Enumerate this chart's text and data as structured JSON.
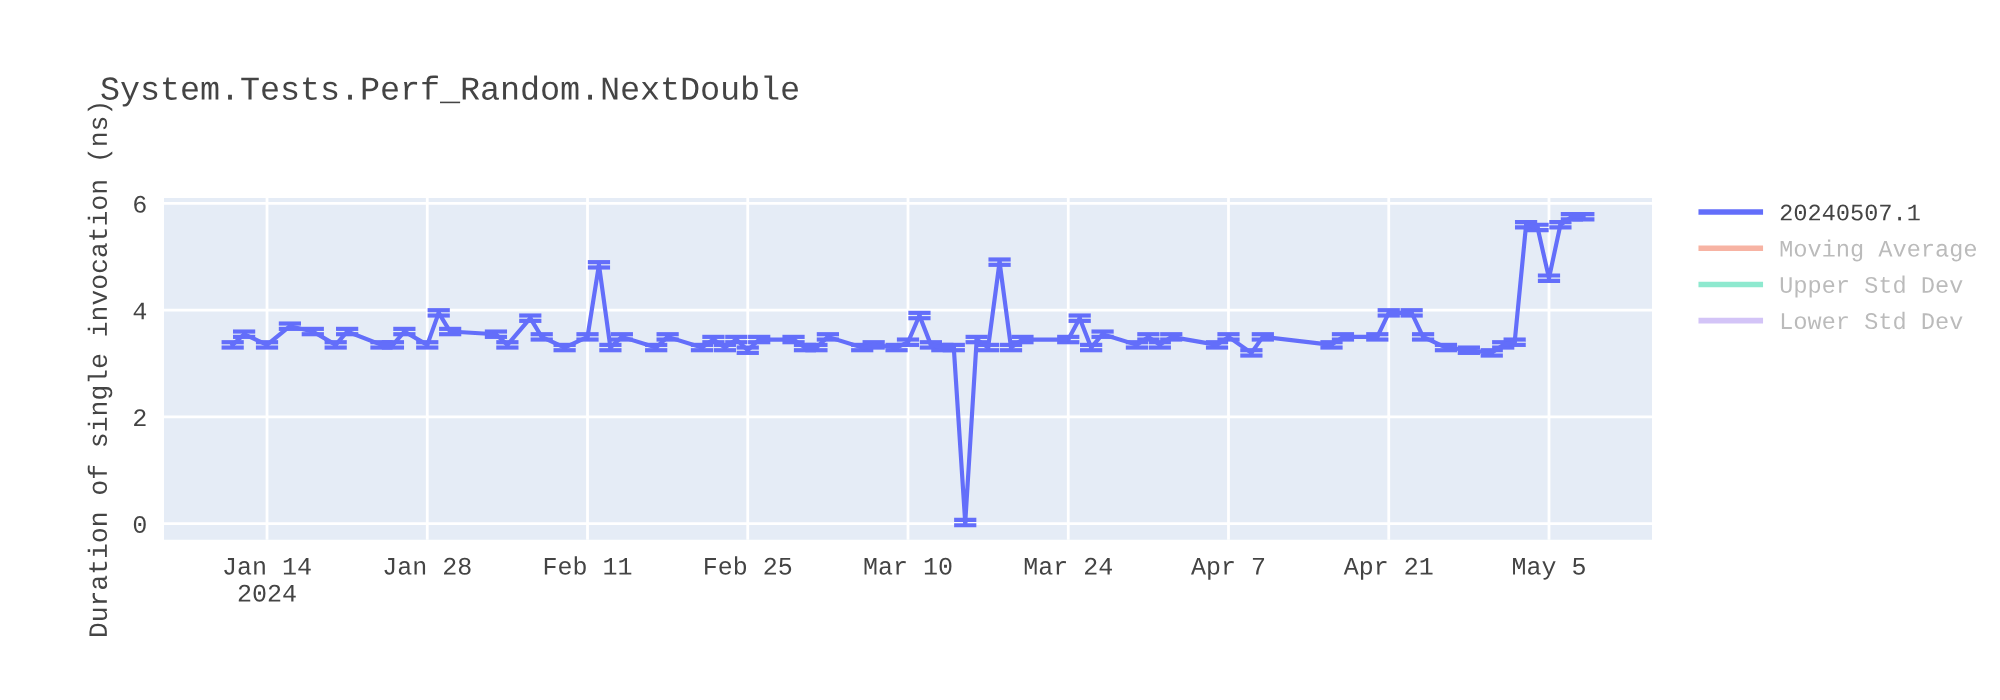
{
  "chart_data": {
    "type": "line",
    "title": "System.Tests.Perf_Random.NextDouble",
    "ylabel": "Duration of single invocation (ns)",
    "x": [
      "2024-01-11",
      "2024-01-12",
      "2024-01-14",
      "2024-01-16",
      "2024-01-18",
      "2024-01-20",
      "2024-01-21",
      "2024-01-24",
      "2024-01-25",
      "2024-01-26",
      "2024-01-28",
      "2024-01-29",
      "2024-01-30",
      "2024-02-03",
      "2024-02-04",
      "2024-02-06",
      "2024-02-07",
      "2024-02-09",
      "2024-02-11",
      "2024-02-12",
      "2024-02-13",
      "2024-02-14",
      "2024-02-17",
      "2024-02-18",
      "2024-02-21",
      "2024-02-22",
      "2024-02-23",
      "2024-02-24",
      "2024-02-25",
      "2024-02-26",
      "2024-02-29",
      "2024-03-01",
      "2024-03-02",
      "2024-03-03",
      "2024-03-06",
      "2024-03-07",
      "2024-03-09",
      "2024-03-10",
      "2024-03-11",
      "2024-03-12",
      "2024-03-13",
      "2024-03-14",
      "2024-03-15",
      "2024-03-16",
      "2024-03-17",
      "2024-03-18",
      "2024-03-19",
      "2024-03-20",
      "2024-03-24",
      "2024-03-25",
      "2024-03-26",
      "2024-03-27",
      "2024-03-30",
      "2024-03-31",
      "2024-04-01",
      "2024-04-02",
      "2024-04-06",
      "2024-04-07",
      "2024-04-09",
      "2024-04-10",
      "2024-04-16",
      "2024-04-17",
      "2024-04-20",
      "2024-04-21",
      "2024-04-23",
      "2024-04-24",
      "2024-04-26",
      "2024-04-28",
      "2024-04-30",
      "2024-05-01",
      "2024-05-02",
      "2024-05-03",
      "2024-05-04",
      "2024-05-05",
      "2024-05-06",
      "2024-05-07",
      "2024-05-08"
    ],
    "series": [
      {
        "name": "20240507.1",
        "color": "#636efa",
        "values": [
          3.35,
          3.55,
          3.35,
          3.7,
          3.6,
          3.35,
          3.6,
          3.35,
          3.35,
          3.6,
          3.35,
          3.95,
          3.6,
          3.55,
          3.35,
          3.85,
          3.5,
          3.3,
          3.5,
          4.85,
          3.3,
          3.5,
          3.3,
          3.5,
          3.3,
          3.45,
          3.3,
          3.45,
          3.25,
          3.45,
          3.45,
          3.3,
          3.3,
          3.5,
          3.3,
          3.35,
          3.3,
          3.4,
          3.9,
          3.35,
          3.3,
          3.3,
          0.02,
          3.45,
          3.3,
          4.9,
          3.3,
          3.45,
          3.45,
          3.85,
          3.3,
          3.55,
          3.35,
          3.5,
          3.35,
          3.5,
          3.35,
          3.5,
          3.2,
          3.5,
          3.35,
          3.5,
          3.5,
          3.95,
          3.95,
          3.5,
          3.3,
          3.25,
          3.2,
          3.35,
          3.4,
          5.6,
          5.55,
          4.6,
          5.6,
          5.75,
          5.75
        ],
        "errors": [
          0.05,
          0.05,
          0.05,
          0.05,
          0.05,
          0.05,
          0.05,
          0.05,
          0.05,
          0.05,
          0.05,
          0.05,
          0.05,
          0.05,
          0.05,
          0.05,
          0.05,
          0.05,
          0.05,
          0.05,
          0.05,
          0.05,
          0.05,
          0.05,
          0.05,
          0.05,
          0.05,
          0.05,
          0.05,
          0.05,
          0.05,
          0.05,
          0.05,
          0.05,
          0.05,
          0.05,
          0.05,
          0.05,
          0.05,
          0.05,
          0.05,
          0.05,
          0.05,
          0.05,
          0.05,
          0.05,
          0.05,
          0.05,
          0.05,
          0.05,
          0.05,
          0.05,
          0.05,
          0.05,
          0.05,
          0.05,
          0.05,
          0.05,
          0.05,
          0.05,
          0.05,
          0.05,
          0.05,
          0.05,
          0.05,
          0.05,
          0.05,
          0.05,
          0.05,
          0.05,
          0.05,
          0.05,
          0.05,
          0.05,
          0.05,
          0.05,
          0.05
        ]
      },
      {
        "name": "Moving Average",
        "color": "#f7b3a3",
        "values": [
          null,
          null,
          null,
          null,
          null,
          null,
          null,
          null,
          null,
          null,
          null,
          null,
          null,
          null,
          null,
          null,
          null,
          null,
          null,
          null,
          null,
          null,
          null,
          null,
          null,
          null,
          null,
          null,
          null,
          null,
          null,
          null,
          null,
          null,
          null,
          null,
          null,
          null,
          null,
          null,
          null,
          null,
          null,
          null,
          null,
          null,
          null,
          null,
          null,
          null,
          null,
          null,
          null,
          null,
          null,
          null,
          null,
          null,
          null,
          null,
          null,
          null,
          null,
          null,
          null,
          null,
          null,
          null,
          null,
          null,
          null,
          null,
          null,
          null,
          null,
          null,
          null
        ]
      },
      {
        "name": "Upper Std Dev",
        "color": "#8ee9cf",
        "values": [
          null,
          null,
          null,
          null,
          null,
          null,
          null,
          null,
          null,
          null,
          null,
          null,
          null,
          null,
          null,
          null,
          null,
          null,
          null,
          null,
          null,
          null,
          null,
          null,
          null,
          null,
          null,
          null,
          null,
          null,
          null,
          null,
          null,
          null,
          null,
          null,
          null,
          null,
          null,
          null,
          null,
          null,
          null,
          null,
          null,
          null,
          null,
          null,
          null,
          null,
          null,
          null,
          null,
          null,
          null,
          null,
          null,
          null,
          null,
          null,
          null,
          null,
          null,
          null,
          null,
          null,
          null,
          null,
          null,
          null,
          null,
          null,
          null,
          null,
          null,
          null,
          null
        ]
      },
      {
        "name": "Lower Std Dev",
        "color": "#d3c4f7",
        "values": [
          null,
          null,
          null,
          null,
          null,
          null,
          null,
          null,
          null,
          null,
          null,
          null,
          null,
          null,
          null,
          null,
          null,
          null,
          null,
          null,
          null,
          null,
          null,
          null,
          null,
          null,
          null,
          null,
          null,
          null,
          null,
          null,
          null,
          null,
          null,
          null,
          null,
          null,
          null,
          null,
          null,
          null,
          null,
          null,
          null,
          null,
          null,
          null,
          null,
          null,
          null,
          null,
          null,
          null,
          null,
          null,
          null,
          null,
          null,
          null,
          null,
          null,
          null,
          null,
          null,
          null,
          null,
          null,
          null,
          null,
          null,
          null,
          null,
          null,
          null,
          null,
          null
        ]
      }
    ],
    "xlim": [
      "2024-01-05",
      "2024-05-14"
    ],
    "xticks": [
      {
        "value": "2024-01-14",
        "label": "Jan 14\n2024"
      },
      {
        "value": "2024-01-28",
        "label": "Jan 28"
      },
      {
        "value": "2024-02-11",
        "label": "Feb 11"
      },
      {
        "value": "2024-02-25",
        "label": "Feb 25"
      },
      {
        "value": "2024-03-10",
        "label": "Mar 10"
      },
      {
        "value": "2024-03-24",
        "label": "Mar 24"
      },
      {
        "value": "2024-04-07",
        "label": "Apr 7"
      },
      {
        "value": "2024-04-21",
        "label": "Apr 21"
      },
      {
        "value": "2024-05-05",
        "label": "May 5"
      }
    ],
    "ylim": [
      -0.3,
      6.1
    ],
    "yticks": [
      0,
      2,
      4,
      6
    ],
    "grid": true,
    "legend": "right",
    "marker": "none",
    "line_style": "solid"
  }
}
